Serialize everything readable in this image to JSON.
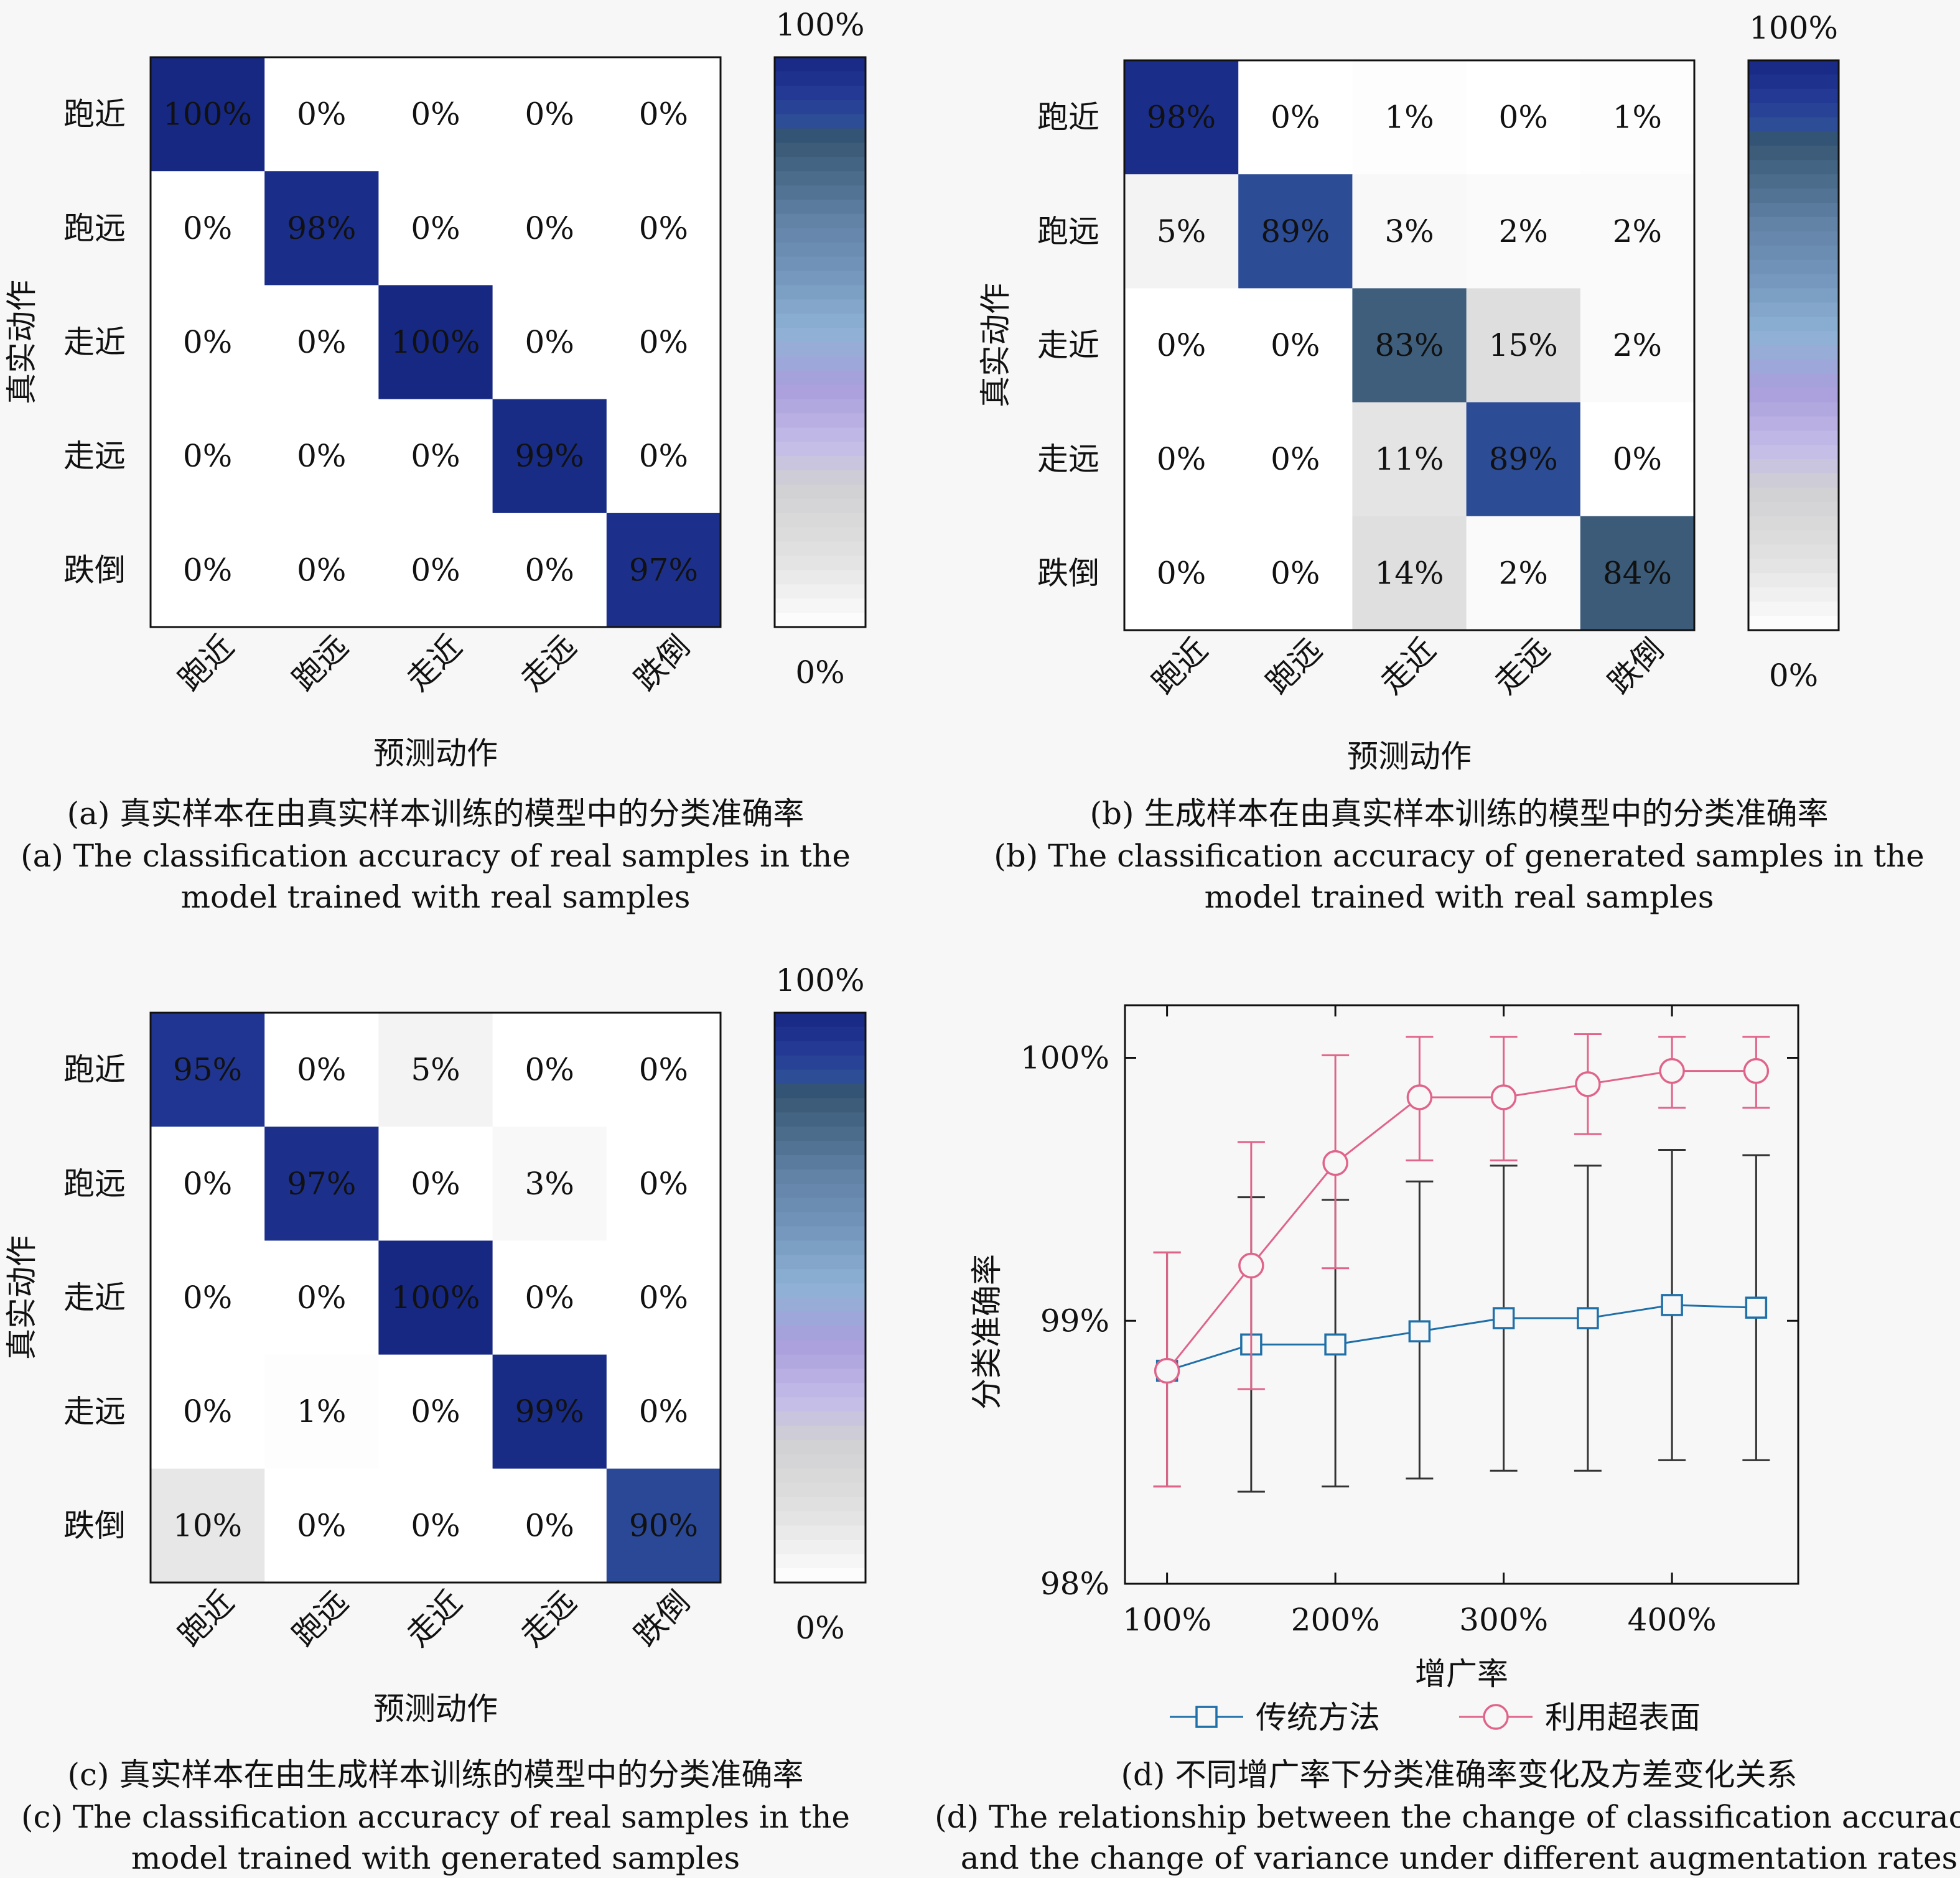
{
  "chart_data": [
    {
      "type": "heatmap",
      "caption_cn": "(a) 真实样本在由真实样本训练的模型中的分类准确率",
      "caption_en_1": "(a) The classification accuracy of real samples in the",
      "caption_en_2": "model trained with real samples",
      "xlabel": "预测动作",
      "ylabel": "真实动作",
      "categories": [
        "跑近",
        "跑远",
        "走近",
        "走远",
        "跌倒"
      ],
      "values": [
        [
          100,
          0,
          0,
          0,
          0
        ],
        [
          0,
          98,
          0,
          0,
          0
        ],
        [
          0,
          0,
          100,
          0,
          0
        ],
        [
          0,
          0,
          0,
          99,
          0
        ],
        [
          0,
          0,
          0,
          0,
          97
        ]
      ],
      "cell_labels": [
        [
          "100%",
          "0%",
          "0%",
          "0%",
          "0%"
        ],
        [
          "0%",
          "98%",
          "0%",
          "0%",
          "0%"
        ],
        [
          "0%",
          "0%",
          "100%",
          "0%",
          "0%"
        ],
        [
          "0%",
          "0%",
          "0%",
          "99%",
          "0%"
        ],
        [
          "0%",
          "0%",
          "0%",
          "0%",
          "97%"
        ]
      ],
      "colorbar_max": "100%",
      "colorbar_min": "0%"
    },
    {
      "type": "heatmap",
      "caption_cn": "(b) 生成样本在由真实样本训练的模型中的分类准确率",
      "caption_en_1": "(b) The classification accuracy of generated samples in the",
      "caption_en_2": "model trained with real samples",
      "xlabel": "预测动作",
      "ylabel": "真实动作",
      "categories": [
        "跑近",
        "跑远",
        "走近",
        "走远",
        "跌倒"
      ],
      "values": [
        [
          98,
          0,
          1,
          0,
          1
        ],
        [
          5,
          89,
          3,
          2,
          2
        ],
        [
          0,
          0,
          83,
          15,
          2
        ],
        [
          0,
          0,
          11,
          89,
          0
        ],
        [
          0,
          0,
          14,
          2,
          84
        ]
      ],
      "cell_labels": [
        [
          "98%",
          "0%",
          "1%",
          "0%",
          "1%"
        ],
        [
          "5%",
          "89%",
          "3%",
          "2%",
          "2%"
        ],
        [
          "0%",
          "0%",
          "83%",
          "15%",
          "2%"
        ],
        [
          "0%",
          "0%",
          "11%",
          "89%",
          "0%"
        ],
        [
          "0%",
          "0%",
          "14%",
          "2%",
          "84%"
        ]
      ],
      "colorbar_max": "100%",
      "colorbar_min": "0%"
    },
    {
      "type": "heatmap",
      "caption_cn": "(c) 真实样本在由生成样本训练的模型中的分类准确率",
      "caption_en_1": "(c) The classification accuracy of real samples in the",
      "caption_en_2": "model trained with generated samples",
      "xlabel": "预测动作",
      "ylabel": "真实动作",
      "categories": [
        "跑近",
        "跑远",
        "走近",
        "走远",
        "跌倒"
      ],
      "values": [
        [
          95,
          0,
          5,
          0,
          0
        ],
        [
          0,
          97,
          0,
          3,
          0
        ],
        [
          0,
          0,
          100,
          0,
          0
        ],
        [
          0,
          1,
          0,
          99,
          0
        ],
        [
          10,
          0,
          0,
          0,
          90
        ]
      ],
      "cell_labels": [
        [
          "95%",
          "0%",
          "5%",
          "0%",
          "0%"
        ],
        [
          "0%",
          "97%",
          "0%",
          "3%",
          "0%"
        ],
        [
          "0%",
          "0%",
          "100%",
          "0%",
          "0%"
        ],
        [
          "0%",
          "1%",
          "0%",
          "99%",
          "0%"
        ],
        [
          "10%",
          "0%",
          "0%",
          "0%",
          "90%"
        ]
      ],
      "colorbar_max": "100%",
      "colorbar_min": "0%"
    },
    {
      "type": "line",
      "caption_cn": "(d) 不同增广率下分类准确率变化及方差变化关系",
      "caption_en_1": "(d) The relationship between the change of classification accuracy",
      "caption_en_2": "and the change of variance under different augmentation rates",
      "xlabel": "增广率",
      "ylabel": "分类准确率",
      "x": [
        100,
        150,
        200,
        250,
        300,
        350,
        400,
        450
      ],
      "xticks": [
        100,
        200,
        300,
        400
      ],
      "xtick_labels": [
        "100%",
        "200%",
        "300%",
        "400%"
      ],
      "yticks": [
        98,
        99,
        100
      ],
      "ytick_labels": [
        "98%",
        "99%",
        "100%"
      ],
      "xlim": [
        75,
        475
      ],
      "ylim": [
        98,
        100.2
      ],
      "legend_position": "bottom",
      "series": [
        {
          "name": "传统方法",
          "color": "#1f6fa8",
          "marker": "square",
          "values": [
            98.81,
            98.91,
            98.91,
            98.96,
            99.01,
            99.01,
            99.06,
            99.05
          ],
          "err_low": [
            98.37,
            98.35,
            98.37,
            98.4,
            98.43,
            98.43,
            98.47,
            98.47
          ],
          "err_high": [
            99.26,
            99.47,
            99.46,
            99.53,
            99.59,
            99.59,
            99.65,
            99.63
          ]
        },
        {
          "name": "利用超表面",
          "color": "#e0648a",
          "marker": "circle",
          "values": [
            98.81,
            99.21,
            99.6,
            99.85,
            99.85,
            99.9,
            99.95,
            99.95
          ],
          "err_low": [
            98.37,
            98.74,
            99.2,
            99.61,
            99.61,
            99.71,
            99.81,
            99.81
          ],
          "err_high": [
            99.26,
            99.68,
            100.01,
            100.08,
            100.08,
            100.09,
            100.08,
            100.08
          ]
        }
      ]
    }
  ]
}
